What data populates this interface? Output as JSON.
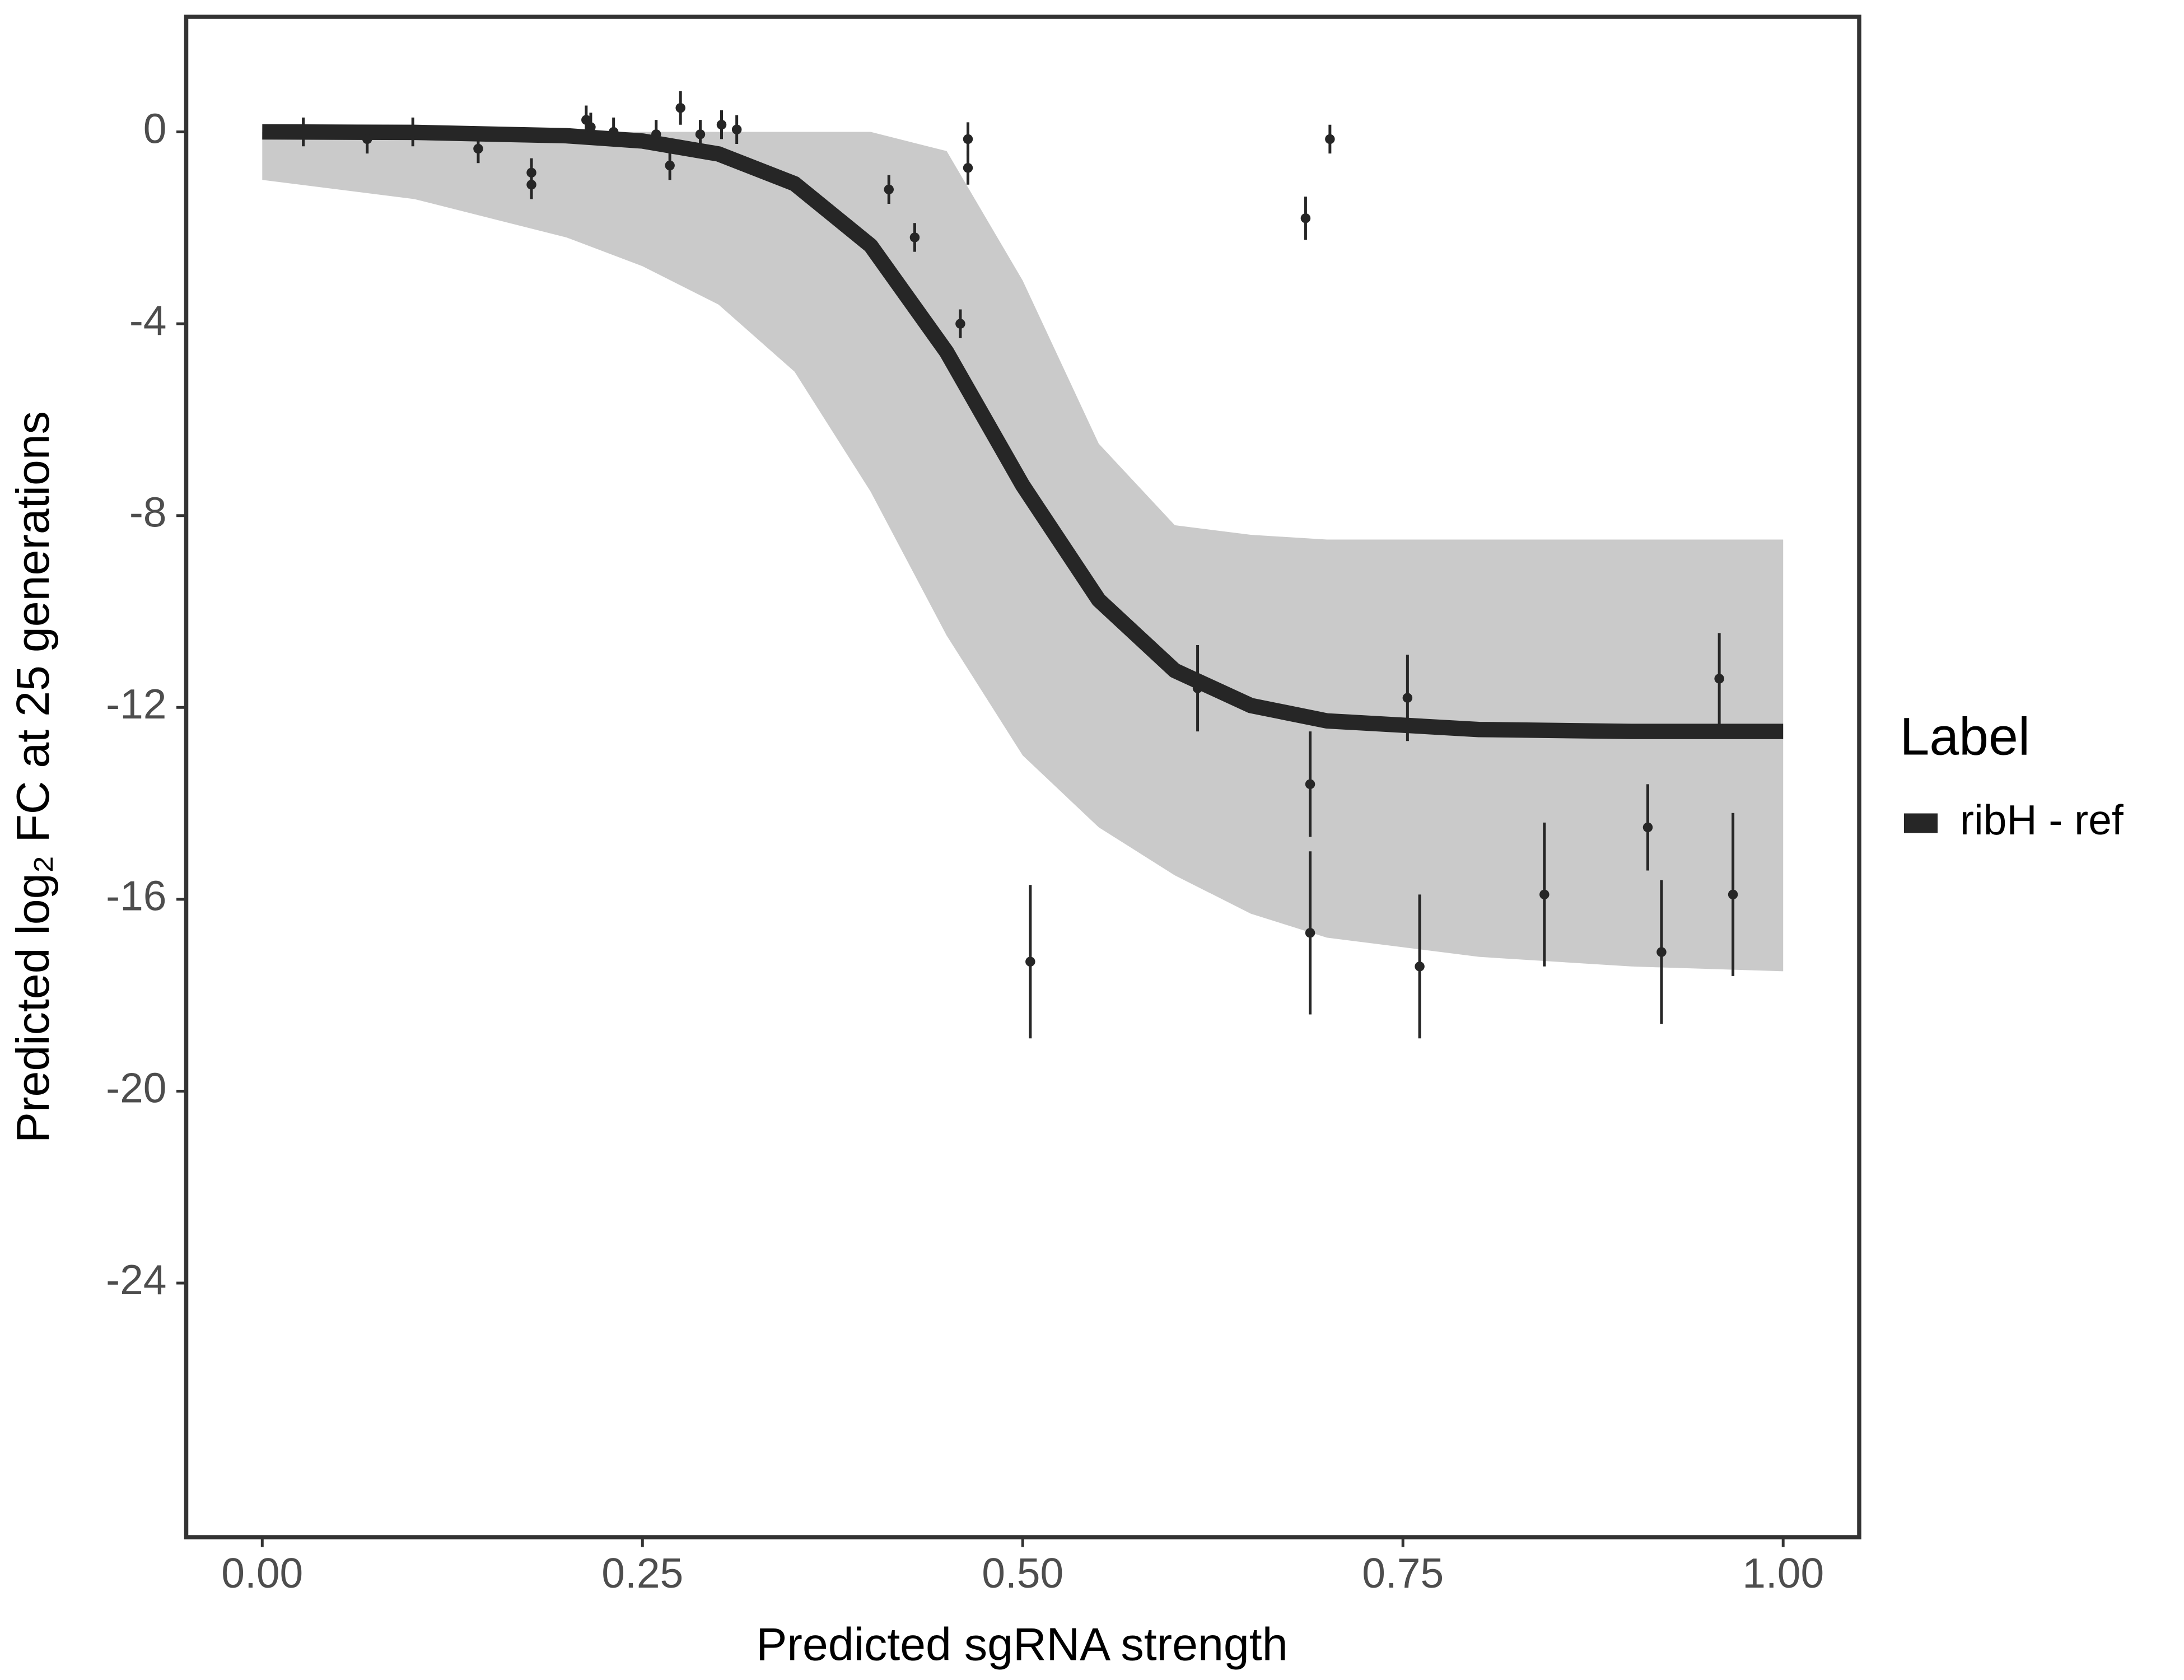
{
  "chart_data": {
    "type": "scatter",
    "x_label": "Predicted sgRNA strength",
    "y_label": "Predicted  log₂ FC at 25 generations",
    "legend_title": "Label",
    "legend_position": "right",
    "xlim": [
      -0.05,
      1.05
    ],
    "ylim": [
      -29.3,
      2.4
    ],
    "xticks": [
      {
        "value": 0,
        "label": "0.00"
      },
      {
        "value": 0.25,
        "label": "0.25"
      },
      {
        "value": 0.5,
        "label": "0.50"
      },
      {
        "value": 0.75,
        "label": "0.75"
      },
      {
        "value": 1,
        "label": "1.00"
      }
    ],
    "yticks": [
      0,
      -4,
      -8,
      -12,
      -16,
      -20,
      -24
    ],
    "grid": false,
    "series": [
      {
        "name": "ribH - ref",
        "color": "#262626",
        "x": [
          0,
          0.1,
          0.2,
          0.25,
          0.3,
          0.35,
          0.4,
          0.45,
          0.5,
          0.55,
          0.6,
          0.65,
          0.7,
          0.8,
          0.9,
          1.0
        ],
        "values": [
          0,
          -0.01,
          -0.08,
          -0.19,
          -0.46,
          -1.08,
          -2.37,
          -4.59,
          -7.37,
          -9.76,
          -11.23,
          -11.96,
          -12.28,
          -12.46,
          -12.5,
          -12.5
        ]
      }
    ],
    "band": {
      "color": "#a6a6a6",
      "x": [
        0,
        0.1,
        0.2,
        0.25,
        0.3,
        0.35,
        0.4,
        0.45,
        0.5,
        0.55,
        0.6,
        0.65,
        0.7,
        0.8,
        0.9,
        1.0
      ],
      "upper": [
        0,
        0,
        0,
        0,
        0,
        0,
        0,
        -0.4,
        -3.1,
        -6.5,
        -8.2,
        -8.4,
        -8.5,
        -8.5,
        -8.5,
        -8.5
      ],
      "lower": [
        -1.0,
        -1.4,
        -2.2,
        -2.8,
        -3.6,
        -5.0,
        -7.5,
        -10.5,
        -13.0,
        -14.5,
        -15.5,
        -16.3,
        -16.8,
        -17.2,
        -17.4,
        -17.5
      ]
    },
    "points": {
      "color": "#262626",
      "x": [
        0.027,
        0.069,
        0.099,
        0.142,
        0.177,
        0.177,
        0.213,
        0.216,
        0.231,
        0.259,
        0.268,
        0.275,
        0.288,
        0.302,
        0.312,
        0.412,
        0.429,
        0.459,
        0.464,
        0.464,
        0.505,
        0.615,
        0.686,
        0.689,
        0.689,
        0.702,
        0.753,
        0.761,
        0.843,
        0.911,
        0.92,
        0.958,
        0.967
      ],
      "values": [
        0,
        -0.15,
        0,
        -0.35,
        -0.85,
        -1.1,
        0.25,
        0.1,
        0,
        -0.05,
        -0.7,
        0.5,
        -0.05,
        0.15,
        0.05,
        -1.2,
        -2.2,
        -4.0,
        -0.15,
        -0.75,
        -17.3,
        -11.6,
        -1.8,
        -13.6,
        -16.7,
        -0.15,
        -11.8,
        -17.4,
        -15.9,
        -14.5,
        -17.1,
        -11.4,
        -15.9
      ],
      "errors": [
        0.3,
        0.3,
        0.3,
        0.3,
        0.3,
        0.3,
        0.3,
        0.3,
        0.3,
        0.3,
        0.3,
        0.35,
        0.3,
        0.3,
        0.3,
        0.3,
        0.3,
        0.3,
        0.35,
        0.35,
        1.6,
        0.9,
        0.45,
        1.1,
        1.7,
        0.3,
        0.9,
        1.5,
        1.5,
        0.9,
        1.5,
        0.95,
        1.7
      ]
    }
  }
}
